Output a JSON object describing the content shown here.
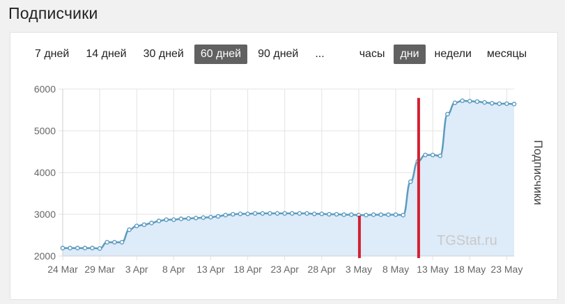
{
  "page": {
    "title": "Подписчики"
  },
  "toolbar": {
    "ranges": [
      "7 дней",
      "14 дней",
      "30 дней",
      "60 дней",
      "90 дней",
      "..."
    ],
    "active_range": "60 дней",
    "granularity": [
      "часы",
      "дни",
      "недели",
      "месяцы"
    ],
    "active_granularity": "дни"
  },
  "colors": {
    "line": "#5b9bbf",
    "fill": "#deebf9",
    "marker": "#d32030",
    "active_button": "#616161",
    "grid": "#e3e3e3"
  },
  "chart_data": {
    "type": "area",
    "ylabel": "Подписчики",
    "xlabel": "",
    "ylim": [
      2000,
      6000
    ],
    "yticks": [
      "2000",
      "3000",
      "4000",
      "5000",
      "6000"
    ],
    "xticks": [
      "24 Mar",
      "29 Mar",
      "3 Apr",
      "8 Apr",
      "13 Apr",
      "18 Apr",
      "23 Apr",
      "28 Apr",
      "3 May",
      "8 May",
      "13 May",
      "18 May",
      "23 May"
    ],
    "x": [
      "24 Mar",
      "25 Mar",
      "26 Mar",
      "27 Mar",
      "28 Mar",
      "29 Mar",
      "30 Mar",
      "31 Mar",
      "1 Apr",
      "2 Apr",
      "3 Apr",
      "4 Apr",
      "5 Apr",
      "6 Apr",
      "7 Apr",
      "8 Apr",
      "9 Apr",
      "10 Apr",
      "11 Apr",
      "12 Apr",
      "13 Apr",
      "14 Apr",
      "15 Apr",
      "16 Apr",
      "17 Apr",
      "18 Apr",
      "19 Apr",
      "20 Apr",
      "21 Apr",
      "22 Apr",
      "23 Apr",
      "24 Apr",
      "25 Apr",
      "26 Apr",
      "27 Apr",
      "28 Apr",
      "29 Apr",
      "30 Apr",
      "1 May",
      "2 May",
      "3 May",
      "4 May",
      "5 May",
      "6 May",
      "7 May",
      "8 May",
      "9 May",
      "10 May",
      "11 May",
      "12 May",
      "13 May",
      "14 May",
      "15 May",
      "16 May",
      "17 May",
      "18 May",
      "19 May",
      "20 May",
      "21 May",
      "22 May",
      "23 May",
      "24 May"
    ],
    "series": [
      {
        "values": [
          2190,
          2190,
          2190,
          2190,
          2190,
          2180,
          2330,
          2330,
          2330,
          2630,
          2720,
          2750,
          2790,
          2840,
          2870,
          2870,
          2890,
          2900,
          2910,
          2920,
          2930,
          2950,
          2980,
          3000,
          3010,
          3010,
          3020,
          3020,
          3020,
          3020,
          3020,
          3020,
          3020,
          3020,
          3010,
          3010,
          3000,
          3000,
          2990,
          2990,
          2980,
          2980,
          2990,
          2990,
          2990,
          2990,
          2980,
          3780,
          4270,
          4420,
          4420,
          4400,
          5400,
          5670,
          5720,
          5710,
          5700,
          5680,
          5660,
          5650,
          5650,
          5640
        ],
        "note_dates": ""
      }
    ],
    "markers": [
      {
        "date": "3 May",
        "value": 2800
      },
      {
        "date": "11 May",
        "value": 5620
      }
    ],
    "grid": true,
    "legend": "none",
    "watermark": "TGStat.ru"
  }
}
